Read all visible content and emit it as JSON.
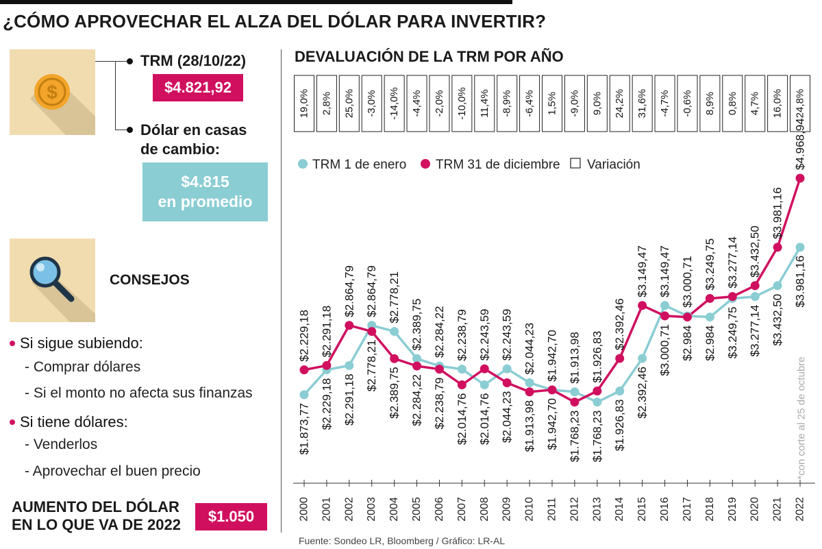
{
  "title": "¿CÓMO APROVECHAR EL ALZA DEL DÓLAR PARA INVERTIR?",
  "left": {
    "trm_label": "TRM (28/10/22)",
    "trm_value": "$4.821,92",
    "casas_label_1": "Dólar en casas",
    "casas_label_2": "de cambio:",
    "casas_value_1": "$4.815",
    "casas_value_2": "en promedio",
    "consejos_label": "CONSEJOS",
    "tips": [
      {
        "main": "Si sigue subiendo:",
        "subs": [
          "- Comprar dólares",
          "- Si el monto no afecta sus finanzas"
        ]
      },
      {
        "main": "Si tiene dólares:",
        "subs": [
          "- Venderlos",
          "- Aprovechar el buen precio"
        ]
      }
    ],
    "aumento_label_1": "AUMENTO DEL DÓLAR",
    "aumento_label_2": "EN LO QUE VA DE 2022",
    "aumento_value": "$1.050"
  },
  "colors": {
    "pink": "#d0105f",
    "cyan": "#8acdd3",
    "tile": "#f1dcb0"
  },
  "chart_data": {
    "type": "line",
    "title": "DEVALUACIÓN DE LA TRM POR AÑO",
    "years": [
      "2000",
      "2001",
      "2002",
      "2003",
      "2004",
      "2005",
      "2006",
      "2007",
      "2008",
      "2009",
      "2010",
      "2011",
      "2012",
      "2013",
      "2014",
      "2015",
      "2016",
      "2017",
      "2018",
      "2019",
      "2020",
      "2021",
      "2022"
    ],
    "variation": [
      "19,0%",
      "2,8%",
      "25,0%",
      "-3,0%",
      "-14,0%",
      "-4,4%",
      "-2,0%",
      "-10,0%",
      "11,4%",
      "-8,9%",
      "-6,4%",
      "1,5%",
      "-9,0%",
      "9,0%",
      "24,2%",
      "31,6%",
      "-4,7%",
      "-0,6%",
      "8,9%",
      "0,8%",
      "4,7%",
      "16,0%",
      "24,8%"
    ],
    "legend": [
      "TRM 1 de enero",
      "TRM 31 de diciembre",
      "Variación"
    ],
    "series": [
      {
        "name": "TRM 1 de enero",
        "values": [
          1873.77,
          2229.18,
          2291.18,
          2864.79,
          2778.21,
          2389.75,
          2284.22,
          2238.79,
          2014.76,
          2243.59,
          2044.23,
          1942.7,
          1913.98,
          1768.23,
          1926.83,
          2392.46,
          3149.47,
          3000.71,
          2984.0,
          3249.75,
          3277.14,
          3432.5,
          3981.16
        ],
        "labels": [
          "$1.873,77",
          "$2.229,18",
          "$2.291,18",
          "$2.864,79",
          "$2.778,21",
          "$2.389,75",
          "$2.284,22",
          "$2.238,79",
          "$2.014,76",
          "$2.243,59",
          "$2.044,23",
          "$1.942,70",
          "$1.913,98",
          "$1.768,23",
          "$1.926,83",
          "$2.392,46",
          "$3.149,47",
          "$3.000,71",
          "$2.984",
          "$3.249,75",
          "$3.277,14",
          "$3.432,50",
          "$3.981,16"
        ]
      },
      {
        "name": "TRM 31 de diciembre",
        "values": [
          2229.18,
          2291.18,
          2864.79,
          2778.21,
          2389.75,
          2284.22,
          2238.79,
          2014.76,
          2243.59,
          2044.23,
          1913.98,
          1942.7,
          1768.23,
          1926.83,
          2392.46,
          3149.47,
          3000.71,
          2984.0,
          3249.75,
          3277.14,
          3432.5,
          3981.16,
          4968.94
        ],
        "labels": [
          "$2.229,18",
          "$2.291,18",
          "$2.864,79",
          "$2.778,21",
          "$2.389,75",
          "$2.284,22",
          "$2.238,79",
          "$2.014,76",
          "$2.243,59",
          "$2.044,23",
          "$1.913,98",
          "$1.942,70",
          "$1.768,23",
          "$1.926,83",
          "$2.392,46",
          "$3.149,47",
          "$3.000,71",
          "$2.984",
          "$3.249,75",
          "$3.277,14",
          "$3.432,50",
          "$3.981,16",
          "$4.968,94"
        ]
      }
    ],
    "ylim": [
      1500,
      5000
    ],
    "footnote": "*con corte al 25 de octubre"
  },
  "source": "Fuente: Sondeo LR, Bloomberg / Gráfico: LR-AL"
}
